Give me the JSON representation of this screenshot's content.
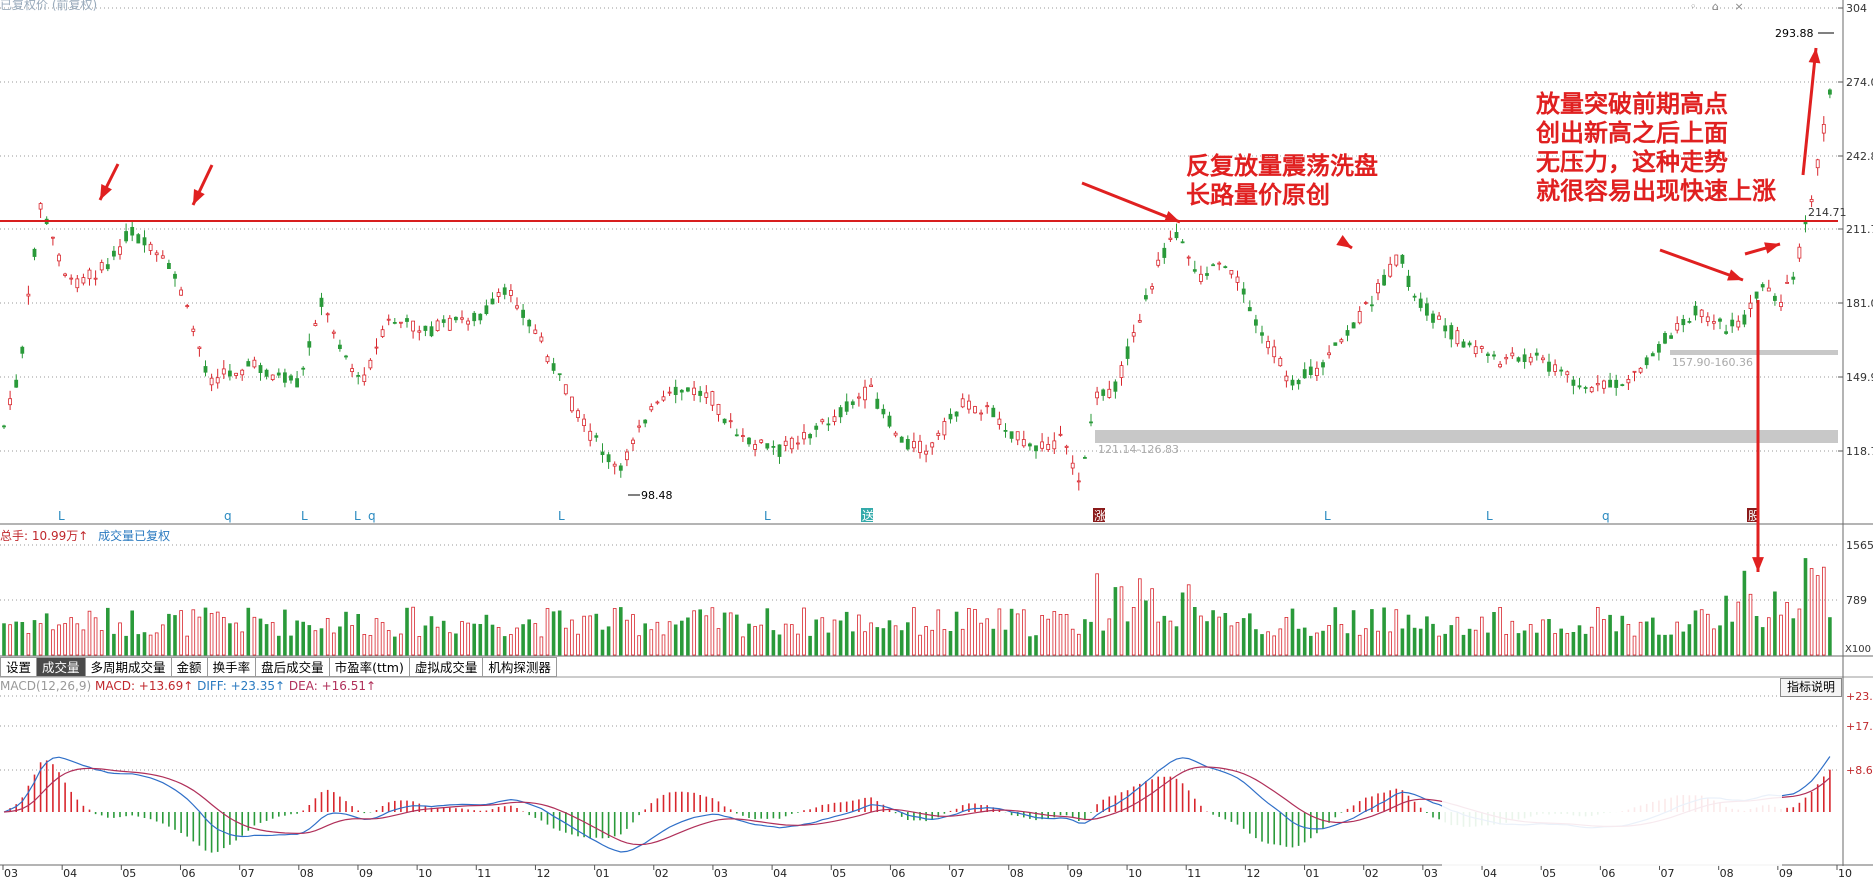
{
  "window": {
    "title_faded": "已复权价 (前复权)"
  },
  "top_icons": [
    "◦",
    "⌂",
    "×"
  ],
  "price_panel": {
    "y_axis_labels": [
      "304",
      "274.0",
      "242.8",
      "211.7",
      "181.0",
      "149.9",
      "118.7"
    ],
    "high_label": "293.88",
    "low_label": "98.48",
    "resistance_label": "214.71",
    "range_label_1": "121.14-126.83",
    "range_label_2": "157.90-160.36",
    "markers": [
      "L",
      "q",
      "L",
      "L",
      "q",
      "L",
      "L",
      "送",
      "涨",
      "L",
      "L",
      "q",
      "股"
    ]
  },
  "annotations": {
    "middle": "反复放量震荡洗盘\n长路量价原创",
    "right": "放量突破前期高点\n创出新高之后上面\n无压力，这种走势\n就很容易出现快速上涨"
  },
  "volume_panel": {
    "header_label": "总手: 10.99万",
    "header_arrow": "↑",
    "header_note": "成交量已复权",
    "y_axis_labels": [
      "1565",
      "789"
    ],
    "unit_label": "X100"
  },
  "tabs": [
    "设置",
    "成交量",
    "多周期成交量",
    "金额",
    "换手率",
    "盘后成交量",
    "市盈率(ttm)",
    "虚拟成交量",
    "机构探测器"
  ],
  "active_tab": 1,
  "macd_panel": {
    "name": "MACD(12,26,9)",
    "macd_label": "MACD: +13.69",
    "diff_label": "DIFF: +23.35",
    "dea_label": "DEA: +16.51",
    "arrow": "↑",
    "help_button": "指标说明",
    "y_axis_labels": [
      "+23.",
      "+17.",
      "+8.63"
    ]
  },
  "x_axis_labels": [
    "03",
    "04",
    "05",
    "06",
    "07",
    "08",
    "09",
    "10",
    "11",
    "12",
    "01",
    "02",
    "03",
    "04",
    "05",
    "06",
    "07",
    "08",
    "09",
    "10",
    "11",
    "12",
    "01",
    "02",
    "03",
    "04",
    "05",
    "06",
    "07",
    "08",
    "09",
    "10"
  ],
  "colors": {
    "up": "#d8262d",
    "down": "#2a9a3a",
    "resistance": "#d81e1e",
    "diff": "#2f6fc8",
    "dea": "#b0305a",
    "annotation": "#e02020"
  }
}
